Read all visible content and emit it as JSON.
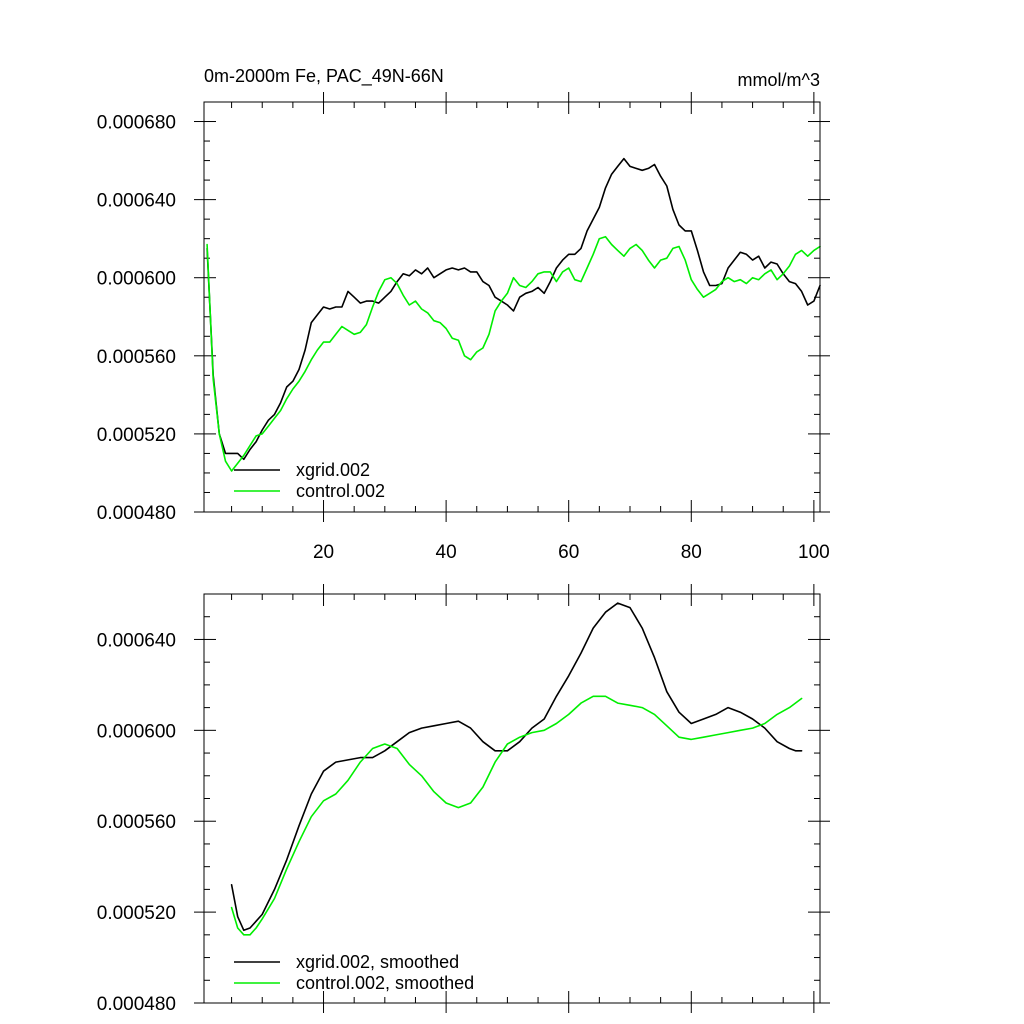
{
  "chart_data": [
    {
      "type": "line",
      "title_left": "0m-2000m Fe, PAC_49N-66N",
      "title_right": "mmol/m^3",
      "xlabel": "",
      "ylabel": "",
      "xlim": [
        0.5,
        101
      ],
      "ylim": [
        0.00048,
        0.00069
      ],
      "x_major_ticks": [
        20,
        40,
        60,
        80,
        100
      ],
      "x_tick_labels": [
        "20",
        "40",
        "60",
        "80",
        "100"
      ],
      "y_major_ticks": [
        0.00048,
        0.00052,
        0.00056,
        0.0006,
        0.00064,
        0.00068
      ],
      "y_tick_labels": [
        "0.000480",
        "0.000520",
        "0.000560",
        "0.000600",
        "0.000640",
        "0.000680"
      ],
      "legend_position": "bottom-left",
      "series": [
        {
          "name": "xgrid.002",
          "color": "#000000",
          "x": [
            1,
            2,
            3,
            4,
            5,
            6,
            7,
            8,
            9,
            10,
            11,
            12,
            13,
            14,
            15,
            16,
            17,
            18,
            19,
            20,
            21,
            22,
            23,
            24,
            25,
            26,
            27,
            28,
            29,
            30,
            31,
            32,
            33,
            34,
            35,
            36,
            37,
            38,
            39,
            40,
            41,
            42,
            43,
            44,
            45,
            46,
            47,
            48,
            49,
            50,
            51,
            52,
            53,
            54,
            55,
            56,
            57,
            58,
            59,
            60,
            61,
            62,
            63,
            64,
            65,
            66,
            67,
            68,
            69,
            70,
            71,
            72,
            73,
            74,
            75,
            76,
            77,
            78,
            79,
            80,
            81,
            82,
            83,
            84,
            85,
            86,
            87,
            88,
            89,
            90,
            91,
            92,
            93,
            94,
            95,
            96,
            97,
            98,
            99,
            100,
            101
          ],
          "values": [
            0.000615,
            0.00055,
            0.00052,
            0.00051,
            0.00051,
            0.00051,
            0.000507,
            0.000512,
            0.000516,
            0.000522,
            0.000527,
            0.00053,
            0.000536,
            0.000544,
            0.000547,
            0.000553,
            0.000563,
            0.000577,
            0.000581,
            0.000585,
            0.000584,
            0.000585,
            0.000585,
            0.000593,
            0.00059,
            0.000587,
            0.000588,
            0.000588,
            0.000587,
            0.00059,
            0.000593,
            0.000598,
            0.000602,
            0.000601,
            0.000604,
            0.000602,
            0.000605,
            0.0006,
            0.000602,
            0.000604,
            0.000605,
            0.000604,
            0.000605,
            0.000603,
            0.000603,
            0.000598,
            0.000596,
            0.00059,
            0.000588,
            0.000586,
            0.000583,
            0.00059,
            0.000592,
            0.000593,
            0.000595,
            0.000592,
            0.000598,
            0.000605,
            0.000609,
            0.000612,
            0.000612,
            0.000615,
            0.000624,
            0.00063,
            0.000636,
            0.000646,
            0.000653,
            0.000657,
            0.000661,
            0.000657,
            0.000656,
            0.000655,
            0.000656,
            0.000658,
            0.000652,
            0.000647,
            0.000635,
            0.000627,
            0.000624,
            0.000624,
            0.000614,
            0.000603,
            0.000596,
            0.000596,
            0.000597,
            0.000605,
            0.000609,
            0.000613,
            0.000612,
            0.000609,
            0.000611,
            0.000605,
            0.000608,
            0.000607,
            0.000602,
            0.000598,
            0.000597,
            0.000593,
            0.000586,
            0.000588,
            0.000596
          ]
        },
        {
          "name": "control.002",
          "color": "#00ee00",
          "x": [
            1,
            2,
            3,
            4,
            5,
            6,
            7,
            8,
            9,
            10,
            11,
            12,
            13,
            14,
            15,
            16,
            17,
            18,
            19,
            20,
            21,
            22,
            23,
            24,
            25,
            26,
            27,
            28,
            29,
            30,
            31,
            32,
            33,
            34,
            35,
            36,
            37,
            38,
            39,
            40,
            41,
            42,
            43,
            44,
            45,
            46,
            47,
            48,
            49,
            50,
            51,
            52,
            53,
            54,
            55,
            56,
            57,
            58,
            59,
            60,
            61,
            62,
            63,
            64,
            65,
            66,
            67,
            68,
            69,
            70,
            71,
            72,
            73,
            74,
            75,
            76,
            77,
            78,
            79,
            80,
            81,
            82,
            83,
            84,
            85,
            86,
            87,
            88,
            89,
            90,
            91,
            92,
            93,
            94,
            95,
            96,
            97,
            98,
            99,
            100,
            101
          ],
          "values": [
            0.000617,
            0.000548,
            0.00052,
            0.000506,
            0.000501,
            0.000505,
            0.000509,
            0.000514,
            0.000519,
            0.00052,
            0.000524,
            0.000528,
            0.000532,
            0.000538,
            0.000543,
            0.000547,
            0.000552,
            0.000558,
            0.000563,
            0.000567,
            0.000567,
            0.000571,
            0.000575,
            0.000573,
            0.000571,
            0.000572,
            0.000576,
            0.000585,
            0.000593,
            0.000599,
            0.0006,
            0.000597,
            0.000591,
            0.000586,
            0.000588,
            0.000584,
            0.000582,
            0.000578,
            0.000577,
            0.000574,
            0.000569,
            0.000568,
            0.00056,
            0.000558,
            0.000562,
            0.000564,
            0.000571,
            0.000583,
            0.000588,
            0.000592,
            0.0006,
            0.000596,
            0.000595,
            0.000598,
            0.000602,
            0.000603,
            0.000603,
            0.000598,
            0.000603,
            0.000605,
            0.000599,
            0.000598,
            0.000605,
            0.000612,
            0.00062,
            0.000621,
            0.000617,
            0.000614,
            0.000611,
            0.000615,
            0.000617,
            0.000614,
            0.000609,
            0.000605,
            0.000609,
            0.00061,
            0.000615,
            0.000616,
            0.000609,
            0.000599,
            0.000594,
            0.00059,
            0.000592,
            0.000594,
            0.000598,
            0.0006,
            0.000598,
            0.000599,
            0.000597,
            0.0006,
            0.000599,
            0.000602,
            0.000604,
            0.000599,
            0.000602,
            0.000606,
            0.000612,
            0.000614,
            0.000611,
            0.000614,
            0.000616
          ]
        }
      ]
    },
    {
      "type": "line",
      "xlim": [
        0.5,
        101
      ],
      "ylim": [
        0.00048,
        0.00066
      ],
      "x_major_ticks": [
        20,
        40,
        60,
        80,
        100
      ],
      "x_tick_labels": [],
      "y_major_ticks": [
        0.00048,
        0.00052,
        0.00056,
        0.0006,
        0.00064
      ],
      "y_tick_labels": [
        "0.000480",
        "0.000520",
        "0.000560",
        "0.000600",
        "0.000640"
      ],
      "legend_position": "bottom-left",
      "series": [
        {
          "name": "xgrid.002, smoothed",
          "color": "#000000",
          "x": [
            5,
            6,
            7,
            8,
            9,
            10,
            12,
            14,
            16,
            18,
            20,
            22,
            24,
            26,
            28,
            30,
            32,
            34,
            36,
            38,
            40,
            42,
            44,
            46,
            48,
            50,
            52,
            54,
            56,
            58,
            60,
            62,
            64,
            66,
            68,
            70,
            72,
            74,
            76,
            78,
            80,
            82,
            84,
            86,
            88,
            90,
            92,
            94,
            96,
            97,
            98
          ],
          "values": [
            0.000532,
            0.000518,
            0.000512,
            0.000513,
            0.000516,
            0.000519,
            0.00053,
            0.000543,
            0.000558,
            0.000572,
            0.000582,
            0.000586,
            0.000587,
            0.000588,
            0.000588,
            0.000591,
            0.000595,
            0.000599,
            0.000601,
            0.000602,
            0.000603,
            0.000604,
            0.000601,
            0.000595,
            0.000591,
            0.000591,
            0.000595,
            0.000601,
            0.000605,
            0.000615,
            0.000624,
            0.000634,
            0.000645,
            0.000652,
            0.000656,
            0.000654,
            0.000645,
            0.000632,
            0.000617,
            0.000608,
            0.000603,
            0.000605,
            0.000607,
            0.00061,
            0.000608,
            0.000605,
            0.000601,
            0.000595,
            0.000592,
            0.000591,
            0.000591
          ]
        },
        {
          "name": "control.002, smoothed",
          "color": "#00ee00",
          "x": [
            5,
            6,
            7,
            8,
            9,
            10,
            12,
            14,
            16,
            18,
            20,
            22,
            24,
            26,
            28,
            30,
            32,
            34,
            36,
            38,
            40,
            42,
            44,
            46,
            48,
            50,
            52,
            54,
            56,
            58,
            60,
            62,
            64,
            66,
            68,
            70,
            72,
            74,
            76,
            78,
            80,
            82,
            84,
            86,
            88,
            90,
            92,
            94,
            96,
            98
          ],
          "values": [
            0.000522,
            0.000513,
            0.00051,
            0.00051,
            0.000513,
            0.000517,
            0.000526,
            0.000539,
            0.000551,
            0.000562,
            0.000569,
            0.000572,
            0.000578,
            0.000586,
            0.000592,
            0.000594,
            0.000592,
            0.000585,
            0.00058,
            0.000573,
            0.000568,
            0.000566,
            0.000568,
            0.000575,
            0.000586,
            0.000594,
            0.000597,
            0.000599,
            0.0006,
            0.000603,
            0.000607,
            0.000612,
            0.000615,
            0.000615,
            0.000612,
            0.000611,
            0.00061,
            0.000607,
            0.000602,
            0.000597,
            0.000596,
            0.000597,
            0.000598,
            0.000599,
            0.0006,
            0.000601,
            0.000603,
            0.000607,
            0.00061,
            0.000614
          ]
        }
      ]
    }
  ]
}
